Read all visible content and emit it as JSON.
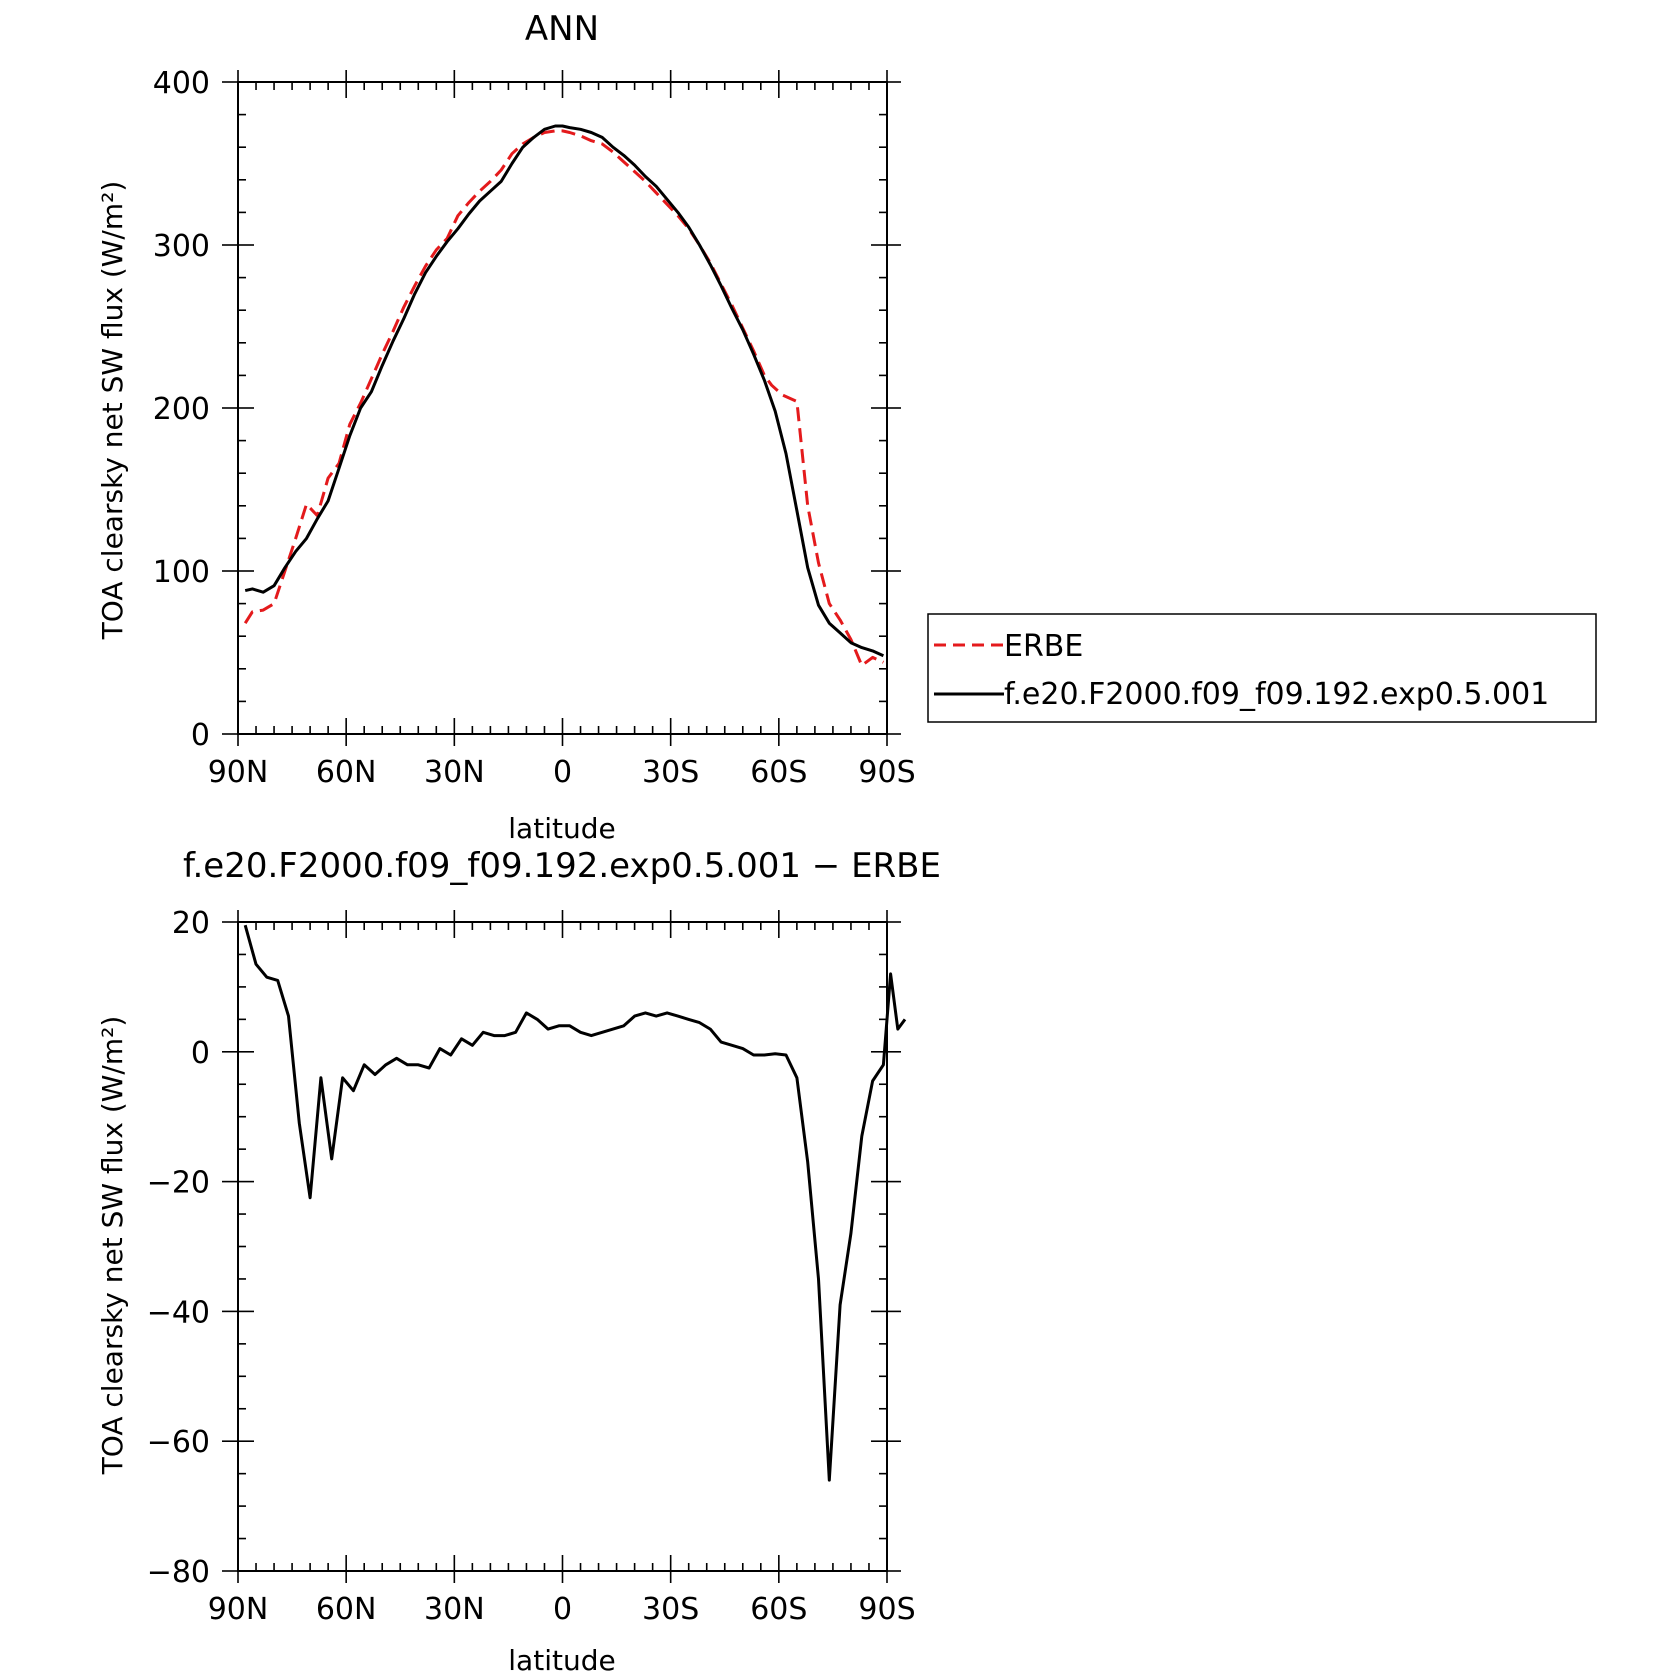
{
  "chart_data": [
    {
      "type": "line",
      "title": "ANN",
      "xlabel": "latitude",
      "ylabel": "TOA clearsky net SW flux (W/m²)",
      "xlim": [
        90,
        -90
      ],
      "ylim": [
        0,
        400
      ],
      "xticks": [
        "90N",
        "60N",
        "30N",
        "0",
        "30S",
        "60S",
        "90S"
      ],
      "xtick_values": [
        90,
        60,
        30,
        0,
        -30,
        -60,
        -90
      ],
      "yticks": [
        "0",
        "100",
        "200",
        "300",
        "400"
      ],
      "ytick_values": [
        0,
        100,
        200,
        300,
        400
      ],
      "legend_position": "right",
      "series": [
        {
          "name": "ERBE",
          "color": "#e41a1c",
          "dash": "dashed",
          "points": [
            [
              88,
              68
            ],
            [
              86,
              75
            ],
            [
              83,
              76
            ],
            [
              80,
              80
            ],
            [
              77,
              100
            ],
            [
              74,
              120
            ],
            [
              71,
              141
            ],
            [
              68,
              134
            ],
            [
              65,
              157
            ],
            [
              62,
              166
            ],
            [
              59,
              190
            ],
            [
              56,
              203
            ],
            [
              53,
              218
            ],
            [
              50,
              233
            ],
            [
              47,
              247
            ],
            [
              44,
              262
            ],
            [
              41,
              275
            ],
            [
              38,
              287
            ],
            [
              35,
              297
            ],
            [
              32,
              304
            ],
            [
              29,
              318
            ],
            [
              26,
              326
            ],
            [
              23,
              333
            ],
            [
              20,
              339
            ],
            [
              17,
              346
            ],
            [
              14,
              356
            ],
            [
              11,
              362
            ],
            [
              8,
              366
            ],
            [
              5,
              369
            ],
            [
              2,
              370
            ],
            [
              0,
              370
            ],
            [
              -2,
              369
            ],
            [
              -5,
              367
            ],
            [
              -8,
              364
            ],
            [
              -11,
              362
            ],
            [
              -14,
              357
            ],
            [
              -17,
              351
            ],
            [
              -20,
              345
            ],
            [
              -23,
              339
            ],
            [
              -26,
              332
            ],
            [
              -29,
              325
            ],
            [
              -32,
              318
            ],
            [
              -35,
              310
            ],
            [
              -38,
              300
            ],
            [
              -41,
              289
            ],
            [
              -44,
              276
            ],
            [
              -47,
              263
            ],
            [
              -50,
              249
            ],
            [
              -53,
              235
            ],
            [
              -56,
              220
            ],
            [
              -58,
              214
            ],
            [
              -61,
              208
            ],
            [
              -64,
              205
            ],
            [
              -65,
              204
            ],
            [
              -68,
              140
            ],
            [
              -71,
              105
            ],
            [
              -74,
              80
            ],
            [
              -77,
              70
            ],
            [
              -80,
              58
            ],
            [
              -83,
              42
            ],
            [
              -86,
              47
            ],
            [
              -89,
              44
            ]
          ]
        },
        {
          "name": "f.e20.F2000.f09_f09.192.exp0.5.001",
          "color": "#000000",
          "dash": "solid",
          "points": [
            [
              88,
              88
            ],
            [
              86,
              89
            ],
            [
              83,
              87
            ],
            [
              80,
              91
            ],
            [
              77,
              102
            ],
            [
              74,
              112
            ],
            [
              71,
              120
            ],
            [
              68,
              132
            ],
            [
              65,
              143
            ],
            [
              62,
              163
            ],
            [
              59,
              183
            ],
            [
              56,
              200
            ],
            [
              53,
              210
            ],
            [
              50,
              226
            ],
            [
              47,
              241
            ],
            [
              44,
              255
            ],
            [
              41,
              270
            ],
            [
              38,
              283
            ],
            [
              35,
              293
            ],
            [
              32,
              302
            ],
            [
              29,
              310
            ],
            [
              26,
              319
            ],
            [
              23,
              327
            ],
            [
              20,
              333
            ],
            [
              17,
              339
            ],
            [
              14,
              350
            ],
            [
              11,
              360
            ],
            [
              8,
              366
            ],
            [
              5,
              371
            ],
            [
              2,
              373
            ],
            [
              0,
              373
            ],
            [
              -2,
              372
            ],
            [
              -5,
              371
            ],
            [
              -8,
              369
            ],
            [
              -11,
              366
            ],
            [
              -14,
              360
            ],
            [
              -17,
              355
            ],
            [
              -20,
              349
            ],
            [
              -23,
              342
            ],
            [
              -26,
              336
            ],
            [
              -29,
              328
            ],
            [
              -32,
              320
            ],
            [
              -35,
              311
            ],
            [
              -38,
              300
            ],
            [
              -41,
              288
            ],
            [
              -44,
              275
            ],
            [
              -47,
              261
            ],
            [
              -50,
              248
            ],
            [
              -53,
              233
            ],
            [
              -56,
              217
            ],
            [
              -59,
              198
            ],
            [
              -62,
              172
            ],
            [
              -65,
              137
            ],
            [
              -68,
              102
            ],
            [
              -71,
              79
            ],
            [
              -74,
              68
            ],
            [
              -77,
              62
            ],
            [
              -80,
              56
            ],
            [
              -83,
              53
            ],
            [
              -86,
              51
            ],
            [
              -89,
              48
            ]
          ]
        }
      ]
    },
    {
      "type": "line",
      "title": "f.e20.F2000.f09_f09.192.exp0.5.001 − ERBE",
      "xlabel": "latitude",
      "ylabel": "TOA clearsky net SW flux (W/m²)",
      "xlim": [
        90,
        -90
      ],
      "ylim": [
        -80,
        20
      ],
      "xticks": [
        "90N",
        "60N",
        "30N",
        "0",
        "30S",
        "60S",
        "90S"
      ],
      "xtick_values": [
        90,
        60,
        30,
        0,
        -30,
        -60,
        -90
      ],
      "yticks": [
        "−80",
        "−60",
        "−40",
        "−20",
        "0",
        "20"
      ],
      "ytick_values": [
        -80,
        -60,
        -40,
        -20,
        0,
        20
      ],
      "series": [
        {
          "color": "#000000",
          "dash": "solid",
          "points": [
            [
              88,
              19.5
            ],
            [
              85,
              13.5
            ],
            [
              82,
              11.5
            ],
            [
              79,
              11
            ],
            [
              76,
              5.5
            ],
            [
              73,
              -11
            ],
            [
              70,
              -22.5
            ],
            [
              67,
              -4
            ],
            [
              64,
              -16.5
            ],
            [
              61,
              -4
            ],
            [
              58,
              -6
            ],
            [
              55,
              -2
            ],
            [
              52,
              -3.5
            ],
            [
              49,
              -2
            ],
            [
              46,
              -1
            ],
            [
              43,
              -2
            ],
            [
              40,
              -2
            ],
            [
              37,
              -2.5
            ],
            [
              34,
              0.5
            ],
            [
              31,
              -0.5
            ],
            [
              28,
              2
            ],
            [
              25,
              1
            ],
            [
              22,
              3
            ],
            [
              19,
              2.5
            ],
            [
              16,
              2.5
            ],
            [
              13,
              3
            ],
            [
              10,
              6
            ],
            [
              7,
              5
            ],
            [
              4,
              3.5
            ],
            [
              1,
              4
            ],
            [
              -2,
              4
            ],
            [
              -5,
              3
            ],
            [
              -8,
              2.5
            ],
            [
              -11,
              3
            ],
            [
              -14,
              3.5
            ],
            [
              -17,
              4
            ],
            [
              -20,
              5.5
            ],
            [
              -23,
              6
            ],
            [
              -26,
              5.5
            ],
            [
              -29,
              6
            ],
            [
              -32,
              5.5
            ],
            [
              -35,
              5
            ],
            [
              -38,
              4.5
            ],
            [
              -41,
              3.5
            ],
            [
              -44,
              1.5
            ],
            [
              -47,
              1
            ],
            [
              -50,
              0.5
            ],
            [
              -53,
              -0.5
            ],
            [
              -56,
              -0.5
            ],
            [
              -59,
              -0.3
            ],
            [
              -62,
              -0.5
            ],
            [
              -65,
              -4
            ],
            [
              -68,
              -17
            ],
            [
              -71,
              -35
            ],
            [
              -74,
              -66
            ],
            [
              -77,
              -39
            ],
            [
              -80,
              -28
            ],
            [
              -83,
              -13
            ],
            [
              -86,
              -4.5
            ],
            [
              -89,
              -2
            ],
            [
              -91,
              12
            ],
            [
              -93,
              3.5
            ],
            [
              -95,
              5
            ]
          ]
        }
      ]
    }
  ]
}
